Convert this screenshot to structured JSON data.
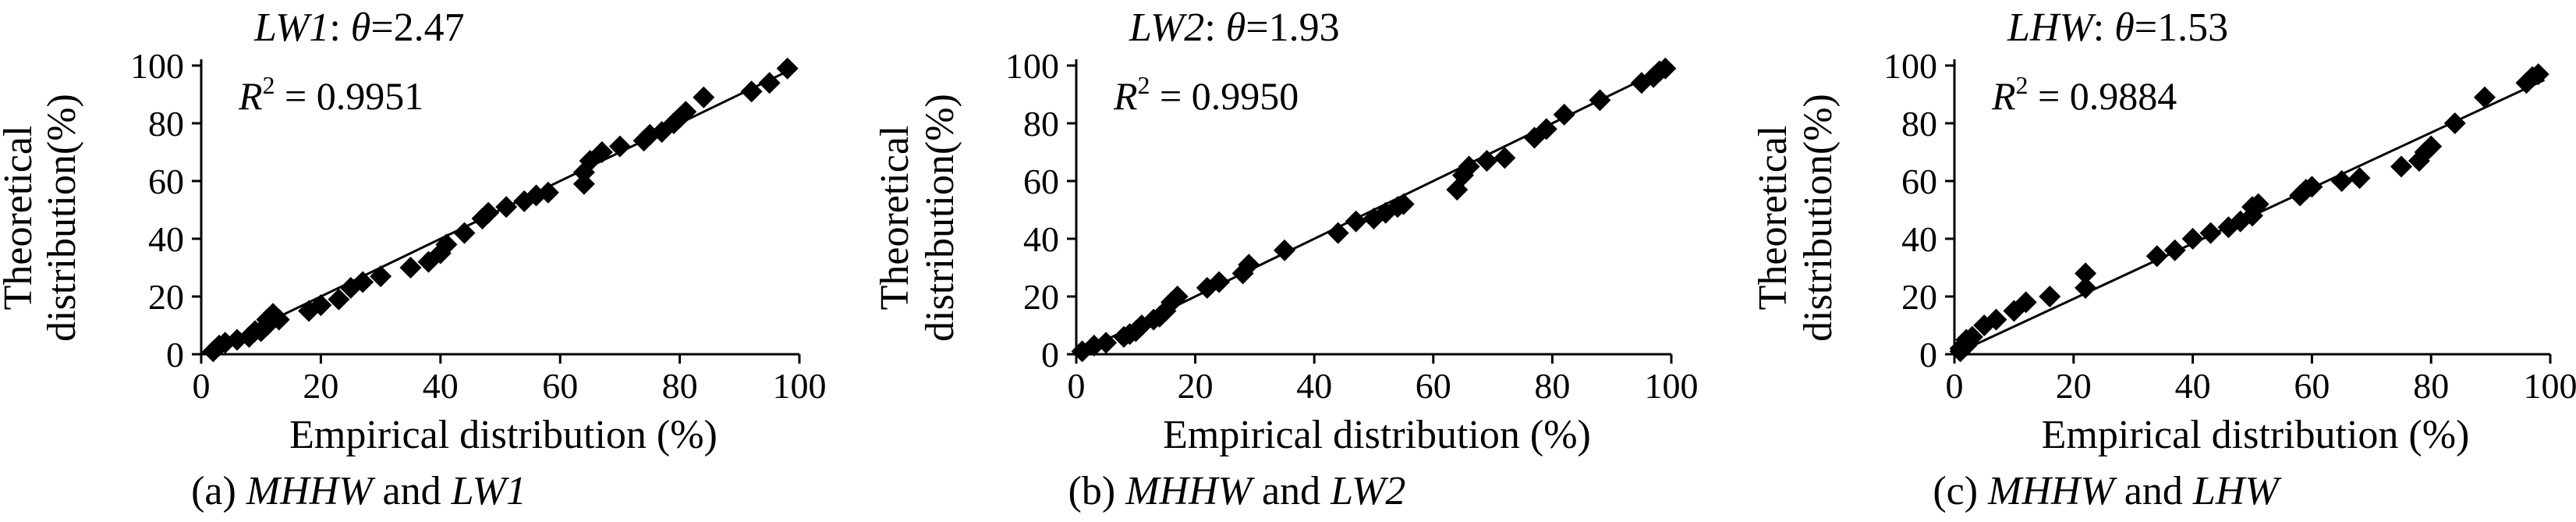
{
  "figure": {
    "panels": [
      {
        "title_series": "LW1",
        "title_theta_label": "θ",
        "title_theta_value": "2.47",
        "r2_value": "0.9951",
        "xlabel": "Empirical distribution (%)",
        "ylabel_line1": "Theoretical",
        "ylabel_line2": "distribution(%)",
        "caption_prefix": "(a)",
        "caption_var1": "MHHW",
        "caption_and": "and",
        "caption_var2": "LW1"
      },
      {
        "title_series": "LW2",
        "title_theta_label": "θ",
        "title_theta_value": "1.93",
        "r2_value": "0.9950",
        "xlabel": "Empirical distribution (%)",
        "ylabel_line1": "Theoretical",
        "ylabel_line2": "distribution(%)",
        "caption_prefix": "(b)",
        "caption_var1": "MHHW",
        "caption_and": "and",
        "caption_var2": "LW2"
      },
      {
        "title_series": "LHW",
        "title_theta_label": "θ",
        "title_theta_value": "1.53",
        "r2_value": "0.9884",
        "xlabel": "Empirical distribution (%)",
        "ylabel_line1": "Theoretical",
        "ylabel_line2": "distribution(%)",
        "caption_prefix": "(c)",
        "caption_var1": "MHHW",
        "caption_and": "and",
        "caption_var2": "LHW"
      }
    ]
  },
  "chart_data": [
    {
      "type": "scatter",
      "title": "LW1: θ=2.47",
      "annotation": "R² = 0.9951",
      "xlabel": "Empirical distribution (%)",
      "ylabel": "Theoretical distribution(%)",
      "xlim": [
        0,
        100
      ],
      "ylim": [
        0,
        100
      ],
      "xticks": [
        0,
        20,
        40,
        60,
        80,
        100
      ],
      "yticks": [
        0,
        20,
        40,
        60,
        80,
        100
      ],
      "grid": false,
      "marker": "diamond",
      "fit_line": {
        "x": [
          0,
          99
        ],
        "y": [
          0,
          99
        ]
      },
      "points": [
        [
          2,
          1
        ],
        [
          3,
          3
        ],
        [
          4,
          4
        ],
        [
          6,
          5
        ],
        [
          8,
          6
        ],
        [
          9,
          8
        ],
        [
          10,
          8
        ],
        [
          11,
          10
        ],
        [
          11,
          12
        ],
        [
          12,
          14
        ],
        [
          13,
          12
        ],
        [
          18,
          15
        ],
        [
          20,
          17
        ],
        [
          23,
          19
        ],
        [
          25,
          23
        ],
        [
          27,
          25
        ],
        [
          30,
          27
        ],
        [
          35,
          30
        ],
        [
          38,
          32
        ],
        [
          40,
          35
        ],
        [
          41,
          38
        ],
        [
          44,
          42
        ],
        [
          47,
          47
        ],
        [
          48,
          49
        ],
        [
          51,
          51
        ],
        [
          54,
          53
        ],
        [
          56,
          55
        ],
        [
          58,
          56
        ],
        [
          64,
          59
        ],
        [
          64,
          63
        ],
        [
          65,
          67
        ],
        [
          67,
          70
        ],
        [
          70,
          72
        ],
        [
          74,
          74
        ],
        [
          75,
          76
        ],
        [
          77,
          77
        ],
        [
          79,
          80
        ],
        [
          80,
          82
        ],
        [
          81,
          84
        ],
        [
          84,
          89
        ],
        [
          92,
          91
        ],
        [
          95,
          94
        ],
        [
          98,
          99
        ]
      ],
      "colors": {
        "marker": "#000000",
        "line": "#000000"
      }
    },
    {
      "type": "scatter",
      "title": "LW2: θ=1.93",
      "annotation": "R² = 0.9950",
      "xlabel": "Empirical distribution (%)",
      "ylabel": "Theoretical distribution(%)",
      "xlim": [
        0,
        100
      ],
      "ylim": [
        0,
        100
      ],
      "xticks": [
        0,
        20,
        40,
        60,
        80,
        100
      ],
      "yticks": [
        0,
        20,
        40,
        60,
        80,
        100
      ],
      "grid": false,
      "marker": "diamond",
      "fit_line": {
        "x": [
          0,
          99
        ],
        "y": [
          0,
          99
        ]
      },
      "points": [
        [
          1,
          1
        ],
        [
          3,
          3
        ],
        [
          5,
          4
        ],
        [
          8,
          6
        ],
        [
          9,
          7
        ],
        [
          10,
          8
        ],
        [
          11,
          10
        ],
        [
          13,
          12
        ],
        [
          14,
          13
        ],
        [
          15,
          15
        ],
        [
          16,
          18
        ],
        [
          17,
          20
        ],
        [
          22,
          23
        ],
        [
          24,
          25
        ],
        [
          28,
          28
        ],
        [
          29,
          31
        ],
        [
          35,
          36
        ],
        [
          44,
          42
        ],
        [
          47,
          46
        ],
        [
          50,
          47
        ],
        [
          52,
          49
        ],
        [
          54,
          51
        ],
        [
          55,
          52
        ],
        [
          64,
          57
        ],
        [
          65,
          62
        ],
        [
          66,
          65
        ],
        [
          69,
          67
        ],
        [
          72,
          68
        ],
        [
          77,
          75
        ],
        [
          79,
          78
        ],
        [
          82,
          83
        ],
        [
          88,
          88
        ],
        [
          95,
          94
        ],
        [
          97,
          96
        ],
        [
          98,
          98
        ],
        [
          99,
          99
        ]
      ],
      "colors": {
        "marker": "#000000",
        "line": "#000000"
      }
    },
    {
      "type": "scatter",
      "title": "LHW: θ=1.53",
      "annotation": "R² = 0.9884",
      "xlabel": "Empirical distribution (%)",
      "ylabel": "Theoretical distribution(%)",
      "xlim": [
        0,
        100
      ],
      "ylim": [
        0,
        100
      ],
      "xticks": [
        0,
        20,
        40,
        60,
        80,
        100
      ],
      "yticks": [
        0,
        20,
        40,
        60,
        80,
        100
      ],
      "grid": false,
      "marker": "diamond",
      "fit_line": {
        "x": [
          0,
          99
        ],
        "y": [
          0,
          95
        ]
      },
      "points": [
        [
          1,
          1
        ],
        [
          1,
          2
        ],
        [
          2,
          3
        ],
        [
          2,
          5
        ],
        [
          3,
          6
        ],
        [
          5,
          10
        ],
        [
          7,
          12
        ],
        [
          10,
          15
        ],
        [
          12,
          18
        ],
        [
          16,
          20
        ],
        [
          22,
          23
        ],
        [
          22,
          28
        ],
        [
          34,
          34
        ],
        [
          37,
          36
        ],
        [
          40,
          40
        ],
        [
          43,
          42
        ],
        [
          46,
          44
        ],
        [
          48,
          46
        ],
        [
          50,
          48
        ],
        [
          50,
          51
        ],
        [
          51,
          52
        ],
        [
          58,
          55
        ],
        [
          59,
          57
        ],
        [
          60,
          58
        ],
        [
          65,
          60
        ],
        [
          68,
          61
        ],
        [
          75,
          65
        ],
        [
          78,
          67
        ],
        [
          79,
          70
        ],
        [
          80,
          72
        ],
        [
          84,
          80
        ],
        [
          89,
          89
        ],
        [
          96,
          94
        ],
        [
          97,
          96
        ],
        [
          98,
          97
        ]
      ],
      "colors": {
        "marker": "#000000",
        "line": "#000000"
      }
    }
  ]
}
